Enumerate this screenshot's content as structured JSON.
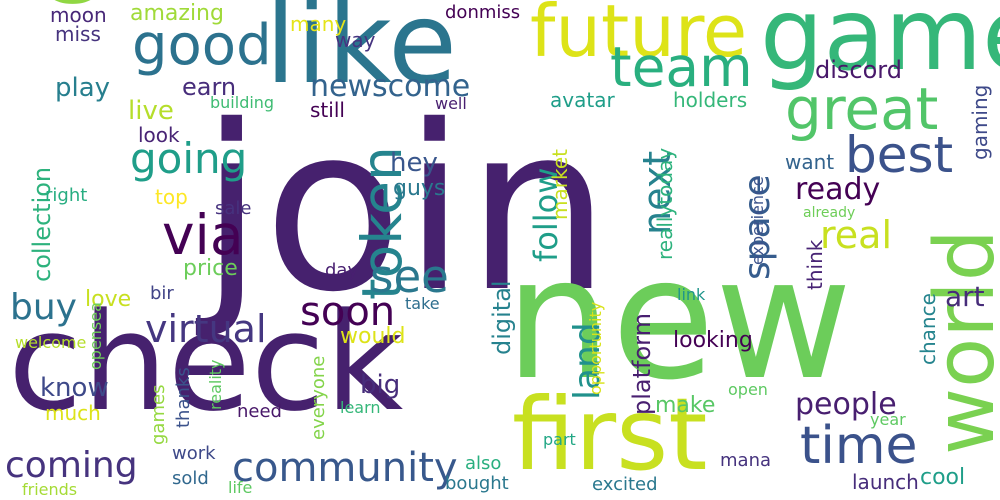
{
  "wordcloud": {
    "words": [
      {
        "text": "join",
        "color": "#46216e"
      },
      {
        "text": "new",
        "color": "#6ccd5a"
      },
      {
        "text": "get",
        "color": "#90d743"
      },
      {
        "text": "check",
        "color": "#46216e"
      },
      {
        "text": "game",
        "color": "#35b779"
      },
      {
        "text": "like",
        "color": "#2b758e"
      },
      {
        "text": "first",
        "color": "#c8e020"
      },
      {
        "text": "world",
        "color": "#7ad151"
      },
      {
        "text": "future",
        "color": "#dde318"
      },
      {
        "text": "good",
        "color": "#2c728e"
      },
      {
        "text": "team",
        "color": "#29af7f"
      },
      {
        "text": "great",
        "color": "#52c569"
      },
      {
        "text": "best",
        "color": "#3b528b"
      },
      {
        "text": "going",
        "color": "#1f9e89"
      },
      {
        "text": "via",
        "color": "#440154"
      },
      {
        "text": "token",
        "color": "#25848e"
      },
      {
        "text": "see",
        "color": "#2a788e"
      },
      {
        "text": "time",
        "color": "#3b528b"
      },
      {
        "text": "community",
        "color": "#38588c"
      },
      {
        "text": "virtual",
        "color": "#453781"
      },
      {
        "text": "soon",
        "color": "#440154"
      },
      {
        "text": "coming",
        "color": "#46337e"
      },
      {
        "text": "people",
        "color": "#481f70"
      },
      {
        "text": "real",
        "color": "#c8e020"
      },
      {
        "text": "next",
        "color": "#26828e"
      },
      {
        "text": "space",
        "color": "#365c8d"
      },
      {
        "text": "follow",
        "color": "#1f9e89"
      },
      {
        "text": "ready",
        "color": "#440154"
      },
      {
        "text": "art",
        "color": "#472c7a"
      },
      {
        "text": "buy",
        "color": "#2c728e"
      },
      {
        "text": "land",
        "color": "#21918c"
      },
      {
        "text": "newscome",
        "color": "#33638d"
      },
      {
        "text": "discord",
        "color": "#48186a"
      },
      {
        "text": "hey",
        "color": "#39568c"
      },
      {
        "text": "live",
        "color": "#b5de2b"
      },
      {
        "text": "play",
        "color": "#277f8e"
      },
      {
        "text": "earn",
        "color": "#472d7b"
      },
      {
        "text": "big",
        "color": "#472d7b"
      },
      {
        "text": "know",
        "color": "#3e4989"
      },
      {
        "text": "collection",
        "color": "#2db27d"
      },
      {
        "text": "digital",
        "color": "#26828e"
      },
      {
        "text": "platform",
        "color": "#481f70"
      },
      {
        "text": "avatar",
        "color": "#1f9e89"
      },
      {
        "text": "make",
        "color": "#58c765"
      },
      {
        "text": "looking",
        "color": "#440154"
      },
      {
        "text": "amazing",
        "color": "#a0da39"
      },
      {
        "text": "price",
        "color": "#6ccd5a"
      },
      {
        "text": "would",
        "color": "#dde318"
      },
      {
        "text": "love",
        "color": "#c8e020"
      },
      {
        "text": "guys",
        "color": "#2a788e"
      },
      {
        "text": "moon",
        "color": "#482878"
      },
      {
        "text": "miss",
        "color": "#46337e"
      },
      {
        "text": "way",
        "color": "#463480"
      },
      {
        "text": "many",
        "color": "#e5e419"
      },
      {
        "text": "donmiss",
        "color": "#440154"
      },
      {
        "text": "holders",
        "color": "#35b779"
      },
      {
        "text": "gaming",
        "color": "#3e4989"
      },
      {
        "text": "look",
        "color": "#482475"
      },
      {
        "text": "still",
        "color": "#440154"
      },
      {
        "text": "want",
        "color": "#33638d"
      },
      {
        "text": "market",
        "color": "#c8e020"
      },
      {
        "text": "reallytoday",
        "color": "#2db27d"
      },
      {
        "text": "think",
        "color": "#482475"
      },
      {
        "text": "chance",
        "color": "#25848e"
      },
      {
        "text": "cool",
        "color": "#1f9e89"
      },
      {
        "text": "launch",
        "color": "#472d7b"
      },
      {
        "text": "sold",
        "color": "#31688e"
      },
      {
        "text": "also",
        "color": "#29af7f"
      },
      {
        "text": "day",
        "color": "#481f70"
      },
      {
        "text": "top",
        "color": "#fde725"
      },
      {
        "text": "sale",
        "color": "#46327e"
      },
      {
        "text": "bir",
        "color": "#414487"
      },
      {
        "text": "right",
        "color": "#27ad81"
      },
      {
        "text": "building",
        "color": "#3fbc73"
      },
      {
        "text": "well",
        "color": "#481f70"
      },
      {
        "text": "much",
        "color": "#dde318"
      },
      {
        "text": "games",
        "color": "#95d840"
      },
      {
        "text": "thanks",
        "color": "#3b528b"
      },
      {
        "text": "reality",
        "color": "#5ec962"
      },
      {
        "text": "everyone",
        "color": "#84d44b"
      },
      {
        "text": "need",
        "color": "#481769"
      },
      {
        "text": "learn",
        "color": "#35b779"
      },
      {
        "text": "work",
        "color": "#3e4989"
      },
      {
        "text": "opensea",
        "color": "#6ece58"
      },
      {
        "text": "welcome",
        "color": "#b5de2b"
      },
      {
        "text": "take",
        "color": "#2e6e8e"
      },
      {
        "text": "opportunity",
        "color": "#d8e219"
      },
      {
        "text": "link",
        "color": "#1f958b"
      },
      {
        "text": "open",
        "color": "#5ec962"
      },
      {
        "text": "part",
        "color": "#22a785"
      },
      {
        "text": "year",
        "color": "#5ec962"
      },
      {
        "text": "experience",
        "color": "#3b528b"
      },
      {
        "text": "already",
        "color": "#6ece58"
      },
      {
        "text": "mana",
        "color": "#46337e"
      },
      {
        "text": "bought",
        "color": "#2a788e"
      },
      {
        "text": "excited",
        "color": "#2a788e"
      },
      {
        "text": "friends",
        "color": "#a5db36"
      },
      {
        "text": "life",
        "color": "#5ec962"
      }
    ]
  }
}
